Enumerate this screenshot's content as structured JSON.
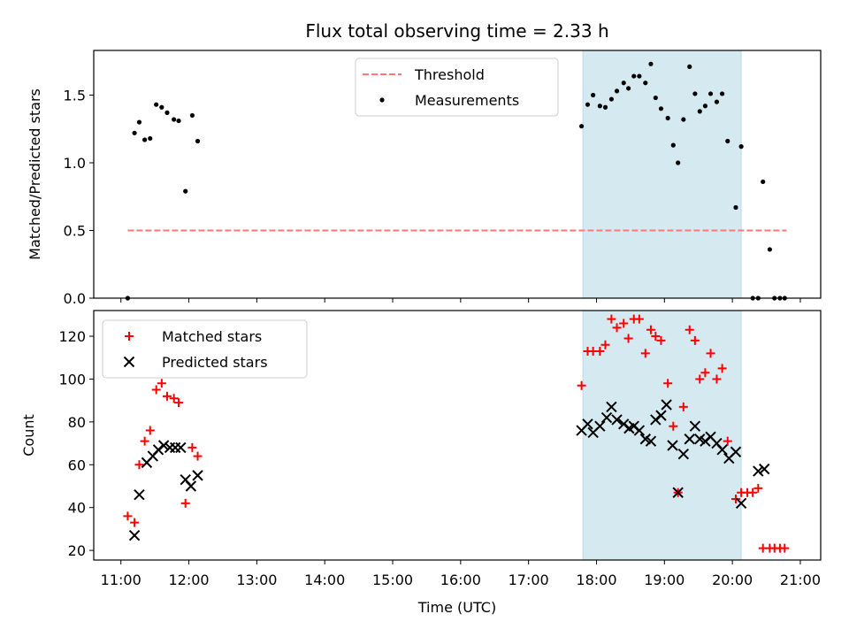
{
  "chart_data": {
    "title": "Flux total observing time = 2.33 h",
    "xlabel": "Time (UTC)",
    "x_unit": "hours UTC",
    "xlim": [
      10.6,
      21.3
    ],
    "xticks": [
      11,
      12,
      13,
      14,
      15,
      16,
      17,
      18,
      19,
      20,
      21
    ],
    "xtick_labels": [
      "11:00",
      "12:00",
      "13:00",
      "14:00",
      "15:00",
      "16:00",
      "17:00",
      "18:00",
      "19:00",
      "20:00",
      "21:00"
    ],
    "shaded_interval": [
      17.8,
      20.13
    ],
    "shade_color": "#d4eaf0",
    "panels": [
      {
        "type": "scatter",
        "ylabel": "Matched/Predicted stars",
        "ylim": [
          0,
          1.83
        ],
        "yticks": [
          0.0,
          0.5,
          1.0,
          1.5
        ],
        "ytick_labels": [
          "0.0",
          "0.5",
          "1.0",
          "1.5"
        ],
        "legend_position": "top-center",
        "series": [
          {
            "name": "Threshold",
            "kind": "dashed-line",
            "color": "#ff7777",
            "x": [
              11.1,
              20.8
            ],
            "y": [
              0.5,
              0.5
            ]
          },
          {
            "name": "Measurements",
            "kind": "dot",
            "color": "#000000",
            "x": [
              11.1,
              11.2,
              11.27,
              11.35,
              11.43,
              11.52,
              11.6,
              11.68,
              11.78,
              11.85,
              11.95,
              12.05,
              12.13,
              17.78,
              17.87,
              17.95,
              18.05,
              18.13,
              18.22,
              18.3,
              18.4,
              18.47,
              18.55,
              18.63,
              18.72,
              18.8,
              18.87,
              18.95,
              19.05,
              19.13,
              19.2,
              19.28,
              19.37,
              19.45,
              19.52,
              19.6,
              19.68,
              19.77,
              19.85,
              19.93,
              20.05,
              20.13,
              20.3,
              20.38,
              20.45,
              20.55,
              20.62,
              20.7,
              20.77
            ],
            "y": [
              0.0,
              1.22,
              1.3,
              1.17,
              1.18,
              1.43,
              1.41,
              1.37,
              1.32,
              1.31,
              0.79,
              1.35,
              1.16,
              1.27,
              1.43,
              1.5,
              1.42,
              1.41,
              1.47,
              1.53,
              1.59,
              1.55,
              1.64,
              1.64,
              1.59,
              1.73,
              1.48,
              1.4,
              1.33,
              1.13,
              1.0,
              1.32,
              1.71,
              1.51,
              1.38,
              1.42,
              1.51,
              1.45,
              1.51,
              1.16,
              0.67,
              1.12,
              0.0,
              0.0,
              0.86,
              0.36,
              0.0,
              0.0,
              0.0
            ]
          }
        ]
      },
      {
        "type": "scatter",
        "ylabel": "Count",
        "ylim": [
          15.5,
          132
        ],
        "yticks": [
          20,
          40,
          60,
          80,
          100,
          120
        ],
        "ytick_labels": [
          "20",
          "40",
          "60",
          "80",
          "100",
          "120"
        ],
        "legend_position": "top-left",
        "series": [
          {
            "name": "Matched stars",
            "kind": "plus",
            "color": "#ff0000",
            "x": [
              11.1,
              11.2,
              11.27,
              11.35,
              11.43,
              11.52,
              11.6,
              11.68,
              11.78,
              11.85,
              11.95,
              12.05,
              12.13,
              17.78,
              17.87,
              17.95,
              18.05,
              18.13,
              18.22,
              18.3,
              18.4,
              18.47,
              18.55,
              18.63,
              18.72,
              18.8,
              18.87,
              18.95,
              19.05,
              19.13,
              19.2,
              19.28,
              19.37,
              19.45,
              19.52,
              19.6,
              19.68,
              19.77,
              19.85,
              19.93,
              20.05,
              20.13,
              20.22,
              20.3,
              20.38,
              20.45,
              20.55,
              20.62,
              20.7,
              20.77
            ],
            "y": [
              36,
              33,
              60,
              71,
              76,
              95,
              98,
              92,
              91,
              89,
              42,
              68,
              64,
              97,
              113,
              113,
              113,
              116,
              128,
              124,
              126,
              119,
              128,
              128,
              112,
              123,
              120,
              118,
              98,
              78,
              47,
              87,
              123,
              118,
              100,
              103,
              112,
              100,
              105,
              71,
              44,
              47,
              47,
              47,
              49,
              21,
              21,
              21,
              21,
              21
            ]
          },
          {
            "name": "Predicted stars",
            "kind": "cross",
            "color": "#000000",
            "x": [
              11.2,
              11.27,
              11.38,
              11.47,
              11.55,
              11.63,
              11.72,
              11.8,
              11.88,
              11.95,
              12.03,
              12.13,
              17.78,
              17.87,
              17.95,
              18.05,
              18.15,
              18.22,
              18.3,
              18.4,
              18.48,
              18.55,
              18.63,
              18.72,
              18.8,
              18.87,
              18.95,
              19.03,
              19.12,
              19.2,
              19.28,
              19.37,
              19.45,
              19.52,
              19.6,
              19.68,
              19.77,
              19.85,
              19.95,
              20.05,
              20.13,
              20.38,
              20.47
            ],
            "y": [
              27,
              46,
              61,
              64,
              67,
              69,
              68,
              68,
              68,
              53,
              50,
              55,
              76,
              79,
              75,
              78,
              82,
              87,
              81,
              79,
              77,
              78,
              76,
              72,
              71,
              81,
              83,
              88,
              69,
              47,
              65,
              72,
              78,
              72,
              71,
              73,
              70,
              67,
              63,
              66,
              42,
              57,
              58
            ]
          }
        ]
      }
    ]
  }
}
